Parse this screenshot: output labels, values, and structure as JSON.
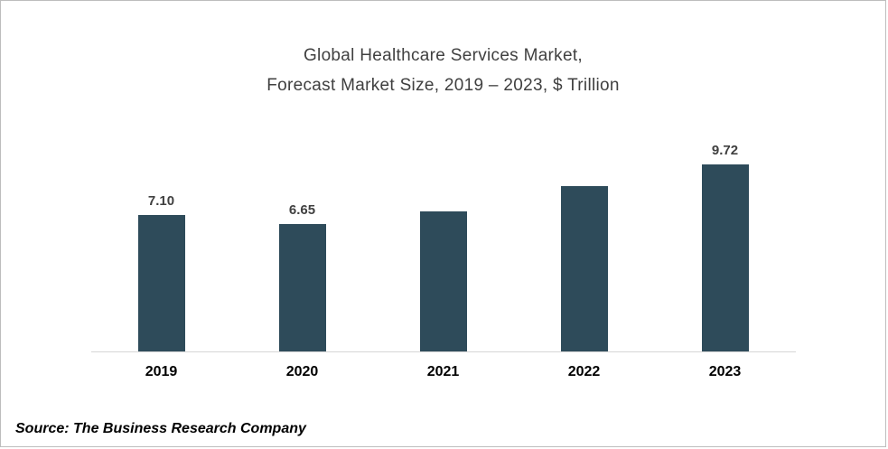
{
  "chart": {
    "title_line1": "Global Healthcare Services Market,",
    "title_line2": "Forecast Market Size, 2019 – 2023, $ Trillion"
  },
  "source": "Source: The Business Research Company",
  "chart_data": {
    "type": "bar",
    "title": "Global Healthcare Services Market, Forecast Market Size, 2019 – 2023, $ Trillion",
    "categories": [
      "2019",
      "2020",
      "2021",
      "2022",
      "2023"
    ],
    "values": [
      7.1,
      6.65,
      7.3,
      8.6,
      9.72
    ],
    "data_labels": [
      "7.10",
      "6.65",
      "",
      "",
      "9.72"
    ],
    "xlabel": "",
    "ylabel": "",
    "ylim": [
      0,
      12
    ],
    "grid": false,
    "legend": false,
    "bar_color": "#2E4B5A",
    "axis_line_color": "#d6d6d6"
  }
}
